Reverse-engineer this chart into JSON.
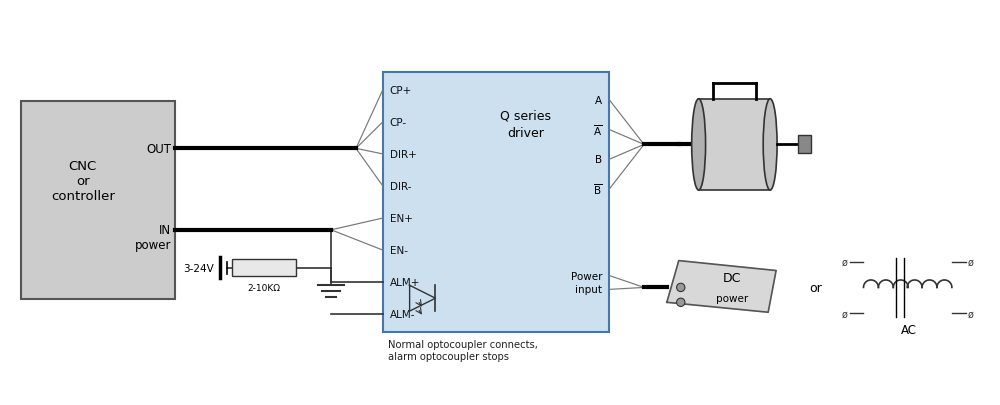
{
  "bg_color": "#ffffff",
  "driver_box_color": "#cce0f0",
  "driver_box_edge": "#4477aa",
  "cnc_box_color": "#cccccc",
  "cnc_box_edge": "#555555",
  "signal_pins_left": [
    "CP+",
    "CP-",
    "DIR+",
    "DIR-",
    "EN+",
    "EN-",
    "ALM+",
    "ALM-"
  ],
  "driver_center_label": "Q series\ndriver",
  "cnc_label": "CNC\nor\ncontroller",
  "out_label": "OUT",
  "in_label": "IN\npower",
  "voltage_label": "3-24V",
  "resistor_label": "2-10KΩ",
  "note_label": "Normal optocoupler connects,\nalarm optocoupler stops",
  "dc_label": "DC",
  "dc_sublabel": "power",
  "or_label": "or",
  "ac_label": "AC",
  "power_label": "Power\ninput"
}
